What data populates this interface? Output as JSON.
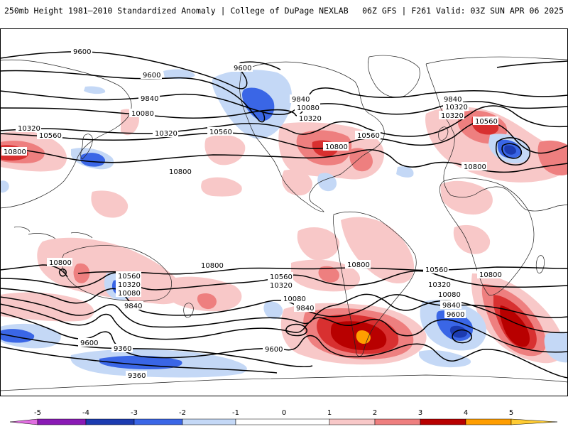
{
  "header": {
    "title": "250mb Height 1981–2010 Standardized Anomaly | College of DuPage NEXLAB",
    "run_info": "06Z GFS | F261 Valid: 03Z SUN APR 06 2025"
  },
  "colors": {
    "neg5": "#e06ee0",
    "neg4": "#8a1ab5",
    "neg3": "#1c3bb0",
    "neg2": "#3a66e6",
    "neg1": "#c4d8f6",
    "pos1": "#f8c8c8",
    "pos2": "#ee7f7f",
    "pos3": "#d83030",
    "pos4": "#b80000",
    "pos5": "#ff9e00",
    "contour": "#000000",
    "coast": "#222222"
  },
  "colorbar": {
    "ticks": [
      "-5",
      "-4",
      "-3",
      "-2",
      "-1",
      "0",
      "1",
      "2",
      "3",
      "4",
      "5"
    ]
  },
  "contour_labels": {
    "n9600a": "9600",
    "n9600b": "9600",
    "n9600c": "9600",
    "n9840a": "9840",
    "n9840b": "9840",
    "n9840c": "9840",
    "n10080a": "10080",
    "n10080b": "10080",
    "n10320a": "10320",
    "n10320b": "10320",
    "n10320c": "10320",
    "n10320d": "10320",
    "n10560a": "10560",
    "n10560b": "10560",
    "n10560c": "10560",
    "n10560d": "10560",
    "n10800a": "10800",
    "n10800b": "10800",
    "n10800c": "10800",
    "n10800d": "10800",
    "s10800a": "10800",
    "s10800b": "10800",
    "s10800c": "10800",
    "s10800d": "10800",
    "s10560a": "10560",
    "s10560b": "10560",
    "s10560c": "10560",
    "s10320a": "10320",
    "s10320b": "10320",
    "s10320c": "10320",
    "s10080a": "10080",
    "s10080b": "10080",
    "s10080c": "10080",
    "s9840a": "9840",
    "s9840b": "9840",
    "s9840c": "9840",
    "s9600a": "9600",
    "s9600b": "9600",
    "s9600c": "9600",
    "s9360a": "9360",
    "s9360b": "9360",
    "n10320e": "10320"
  }
}
